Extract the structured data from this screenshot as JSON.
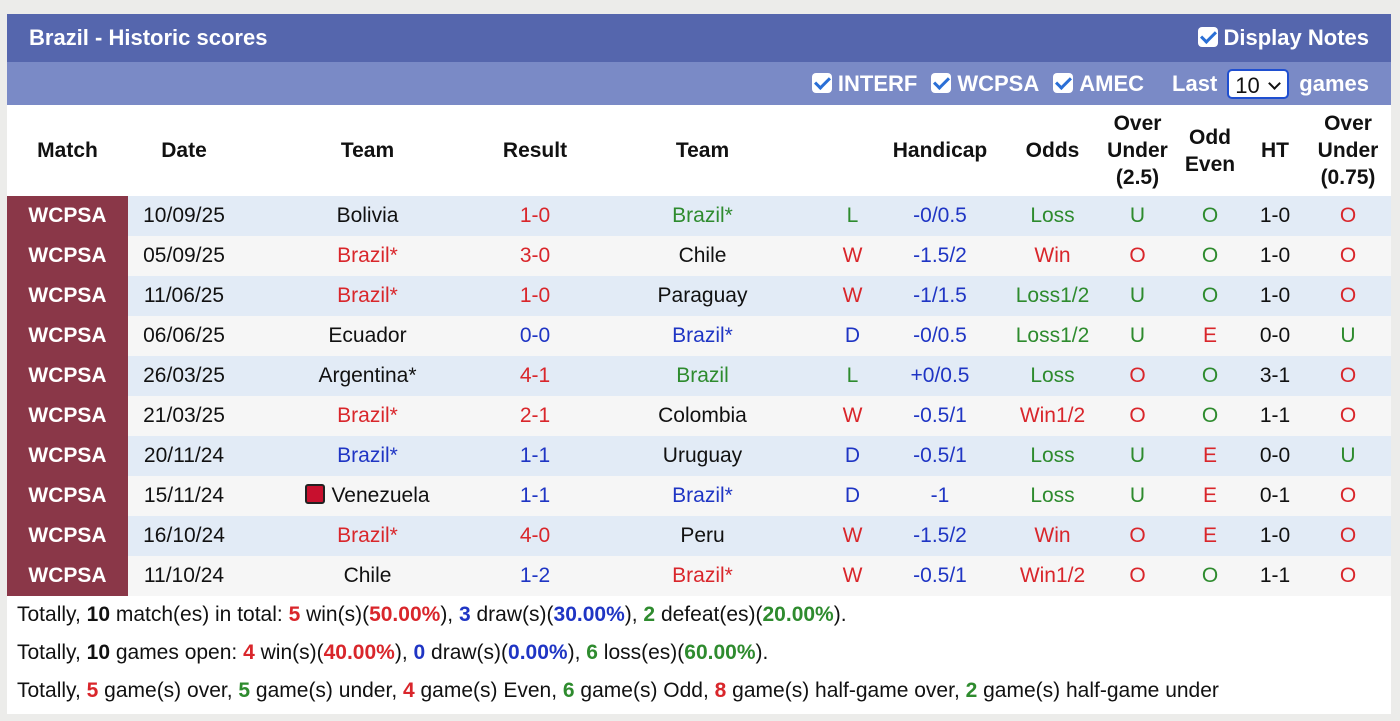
{
  "header": {
    "title": "Brazil - Historic scores",
    "display_notes": "Display Notes"
  },
  "filters": {
    "options": [
      "INTERF",
      "WCPSA",
      "AMEC"
    ],
    "last": "Last",
    "count": "10",
    "games": "games"
  },
  "columns": [
    "Match",
    "Date",
    "Team",
    "Result",
    "Team",
    "Handicap",
    "Odds",
    "Over Under (2.5)",
    "Odd Even",
    "HT",
    "Over Under (0.75)"
  ],
  "palette": {
    "r": "#d9262b",
    "g": "#2e8b2e",
    "b": "#1f35c4",
    "k": "#111111"
  },
  "rows": [
    {
      "cells": [
        "WCPSA",
        "10/09/25",
        "Bolivia",
        "1-0",
        "Brazil*",
        "L",
        "-0/0.5",
        "Loss",
        "U",
        "O",
        "1-0",
        "O"
      ],
      "colors": [
        "k",
        "k",
        "k",
        "r",
        "g",
        "g",
        "b",
        "g",
        "g",
        "g",
        "k",
        "r"
      ]
    },
    {
      "cells": [
        "WCPSA",
        "05/09/25",
        "Brazil*",
        "3-0",
        "Chile",
        "W",
        "-1.5/2",
        "Win",
        "O",
        "O",
        "1-0",
        "O"
      ],
      "colors": [
        "k",
        "k",
        "r",
        "r",
        "k",
        "r",
        "b",
        "r",
        "r",
        "g",
        "k",
        "r"
      ]
    },
    {
      "cells": [
        "WCPSA",
        "11/06/25",
        "Brazil*",
        "1-0",
        "Paraguay",
        "W",
        "-1/1.5",
        "Loss1/2",
        "U",
        "O",
        "1-0",
        "O"
      ],
      "colors": [
        "k",
        "k",
        "r",
        "r",
        "k",
        "r",
        "b",
        "g",
        "g",
        "g",
        "k",
        "r"
      ]
    },
    {
      "cells": [
        "WCPSA",
        "06/06/25",
        "Ecuador",
        "0-0",
        "Brazil*",
        "D",
        "-0/0.5",
        "Loss1/2",
        "U",
        "E",
        "0-0",
        "U"
      ],
      "colors": [
        "k",
        "k",
        "k",
        "b",
        "b",
        "b",
        "b",
        "g",
        "g",
        "r",
        "k",
        "g"
      ]
    },
    {
      "cells": [
        "WCPSA",
        "26/03/25",
        "Argentina*",
        "4-1",
        "Brazil",
        "L",
        "+0/0.5",
        "Loss",
        "O",
        "O",
        "3-1",
        "O"
      ],
      "colors": [
        "k",
        "k",
        "k",
        "r",
        "g",
        "g",
        "b",
        "g",
        "r",
        "g",
        "k",
        "r"
      ]
    },
    {
      "cells": [
        "WCPSA",
        "21/03/25",
        "Brazil*",
        "2-1",
        "Colombia",
        "W",
        "-0.5/1",
        "Win1/2",
        "O",
        "O",
        "1-1",
        "O"
      ],
      "colors": [
        "k",
        "k",
        "r",
        "r",
        "k",
        "r",
        "b",
        "r",
        "r",
        "g",
        "k",
        "r"
      ]
    },
    {
      "cells": [
        "WCPSA",
        "20/11/24",
        "Brazil*",
        "1-1",
        "Uruguay",
        "D",
        "-0.5/1",
        "Loss",
        "U",
        "E",
        "0-0",
        "U"
      ],
      "colors": [
        "k",
        "k",
        "b",
        "b",
        "k",
        "b",
        "b",
        "g",
        "g",
        "r",
        "k",
        "g"
      ]
    },
    {
      "cells": [
        "WCPSA",
        "15/11/24",
        "Venezuela",
        "1-1",
        "Brazil*",
        "D",
        "-1",
        "Loss",
        "U",
        "E",
        "0-1",
        "O"
      ],
      "colors": [
        "k",
        "k",
        "k",
        "b",
        "b",
        "b",
        "b",
        "g",
        "g",
        "r",
        "k",
        "r"
      ],
      "home_flag": true
    },
    {
      "cells": [
        "WCPSA",
        "16/10/24",
        "Brazil*",
        "4-0",
        "Peru",
        "W",
        "-1.5/2",
        "Win",
        "O",
        "E",
        "1-0",
        "O"
      ],
      "colors": [
        "k",
        "k",
        "r",
        "r",
        "k",
        "r",
        "b",
        "r",
        "r",
        "r",
        "k",
        "r"
      ]
    },
    {
      "cells": [
        "WCPSA",
        "11/10/24",
        "Chile",
        "1-2",
        "Brazil*",
        "W",
        "-0.5/1",
        "Win1/2",
        "O",
        "O",
        "1-1",
        "O"
      ],
      "colors": [
        "k",
        "k",
        "k",
        "b",
        "r",
        "r",
        "b",
        "r",
        "r",
        "g",
        "k",
        "r"
      ]
    }
  ],
  "summary": [
    [
      {
        "text": "Totally, ",
        "style": "k"
      },
      {
        "text": "10",
        "style": "kb"
      },
      {
        "text": " match(es) in total: ",
        "style": "k"
      },
      {
        "text": "5",
        "style": "rb"
      },
      {
        "text": " win(s)(",
        "style": "k"
      },
      {
        "text": "50.00%",
        "style": "rb"
      },
      {
        "text": "), ",
        "style": "k"
      },
      {
        "text": "3",
        "style": "bb"
      },
      {
        "text": " draw(s)(",
        "style": "k"
      },
      {
        "text": "30.00%",
        "style": "bb"
      },
      {
        "text": "), ",
        "style": "k"
      },
      {
        "text": "2",
        "style": "gb"
      },
      {
        "text": " defeat(es)(",
        "style": "k"
      },
      {
        "text": "20.00%",
        "style": "gb"
      },
      {
        "text": ").",
        "style": "k"
      }
    ],
    [
      {
        "text": "Totally, ",
        "style": "k"
      },
      {
        "text": "10",
        "style": "kb"
      },
      {
        "text": " games open: ",
        "style": "k"
      },
      {
        "text": "4",
        "style": "rb"
      },
      {
        "text": " win(s)(",
        "style": "k"
      },
      {
        "text": "40.00%",
        "style": "rb"
      },
      {
        "text": "), ",
        "style": "k"
      },
      {
        "text": "0",
        "style": "bb"
      },
      {
        "text": " draw(s)(",
        "style": "k"
      },
      {
        "text": "0.00%",
        "style": "bb"
      },
      {
        "text": "), ",
        "style": "k"
      },
      {
        "text": "6",
        "style": "gb"
      },
      {
        "text": " loss(es)(",
        "style": "k"
      },
      {
        "text": "60.00%",
        "style": "gb"
      },
      {
        "text": ").",
        "style": "k"
      }
    ],
    [
      {
        "text": "Totally, ",
        "style": "k"
      },
      {
        "text": "5",
        "style": "rb"
      },
      {
        "text": " game(s) over, ",
        "style": "k"
      },
      {
        "text": "5",
        "style": "gb"
      },
      {
        "text": " game(s) under, ",
        "style": "k"
      },
      {
        "text": "4",
        "style": "rb"
      },
      {
        "text": " game(s) Even, ",
        "style": "k"
      },
      {
        "text": "6",
        "style": "gb"
      },
      {
        "text": " game(s) Odd, ",
        "style": "k"
      },
      {
        "text": "8",
        "style": "rb"
      },
      {
        "text": " game(s) half-game over, ",
        "style": "k"
      },
      {
        "text": "2",
        "style": "gb"
      },
      {
        "text": " game(s) half-game under",
        "style": "k"
      }
    ]
  ]
}
